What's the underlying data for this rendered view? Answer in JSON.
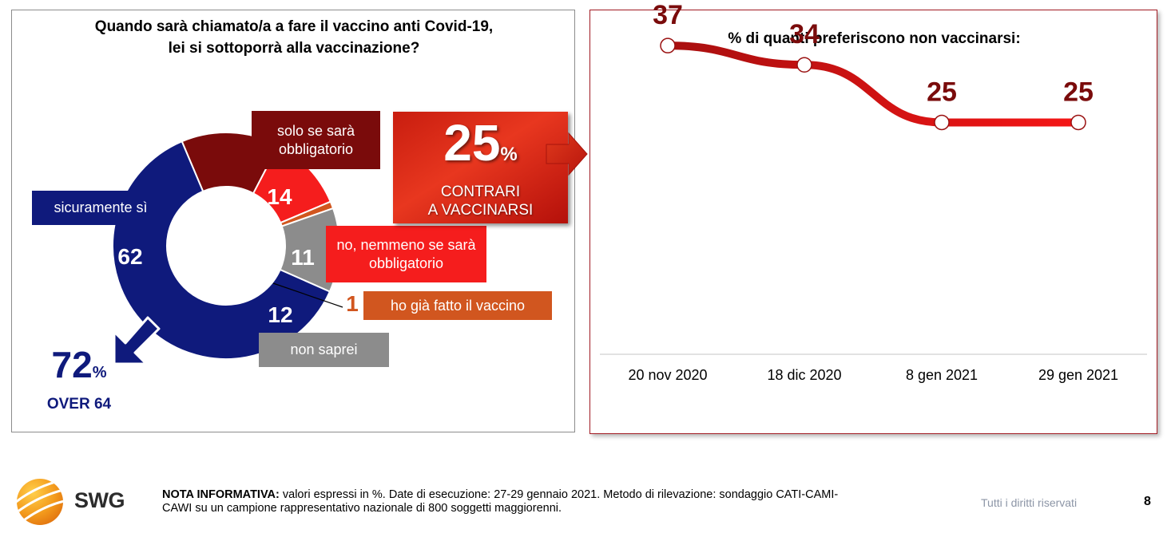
{
  "left_panel": {
    "title_line1": "Quando sarà chiamato/a a fare il vaccino anti Covid-19,",
    "title_line2": "lei si sottoporrà alla vaccinazione?",
    "over": {
      "value": "72",
      "unit": "%",
      "label": "OVER 64"
    },
    "total": {
      "value": "25",
      "unit": "%",
      "line1": "CONTRARI",
      "line2": "A VACCINARSI"
    }
  },
  "right_panel": {
    "title": "% di quanti preferiscono non vaccinarsi:"
  },
  "chart_data": [
    {
      "type": "pie",
      "title": "Quando sarà chiamato/a a fare il vaccino anti Covid-19, lei si sottoporrà alla vaccinazione?",
      "slices": [
        {
          "label": "sicuramente sì",
          "value": 62,
          "color": "#0f1a7c"
        },
        {
          "label": "solo se sarà obbligatorio",
          "value": 14,
          "color": "#7a0b0b"
        },
        {
          "label": "no, nemmeno se sarà obbligatorio",
          "value": 11,
          "color": "#f51d1d"
        },
        {
          "label": "ho già fatto il vaccino",
          "value": 1,
          "color": "#d1561f"
        },
        {
          "label": "non saprei",
          "value": 12,
          "color": "#8c8c8c"
        }
      ]
    },
    {
      "type": "line",
      "title": "% di quanti preferiscono non vaccinarsi:",
      "categories": [
        "20 nov 2020",
        "18 dic 2020",
        "8 gen 2021",
        "29 gen 2021"
      ],
      "values": [
        37,
        34,
        25,
        25
      ],
      "ylim": [
        0,
        45
      ],
      "color_start": "#a80f0f",
      "color_end": "#f51616",
      "grid": false
    }
  ],
  "footer": {
    "logo_text": "SWG",
    "note_bold": "NOTA INFORMATIVA:",
    "note_line1": " valori espressi in %. Date di esecuzione: 27-29 gennaio 2021. Metodo di rilevazione: sondaggio CATI-CAMI-",
    "note_line2": "CAWI su un campione rappresentativo nazionale di 800 soggetti maggiorenni.",
    "rights": "Tutti i diritti riservati",
    "page": "8"
  }
}
